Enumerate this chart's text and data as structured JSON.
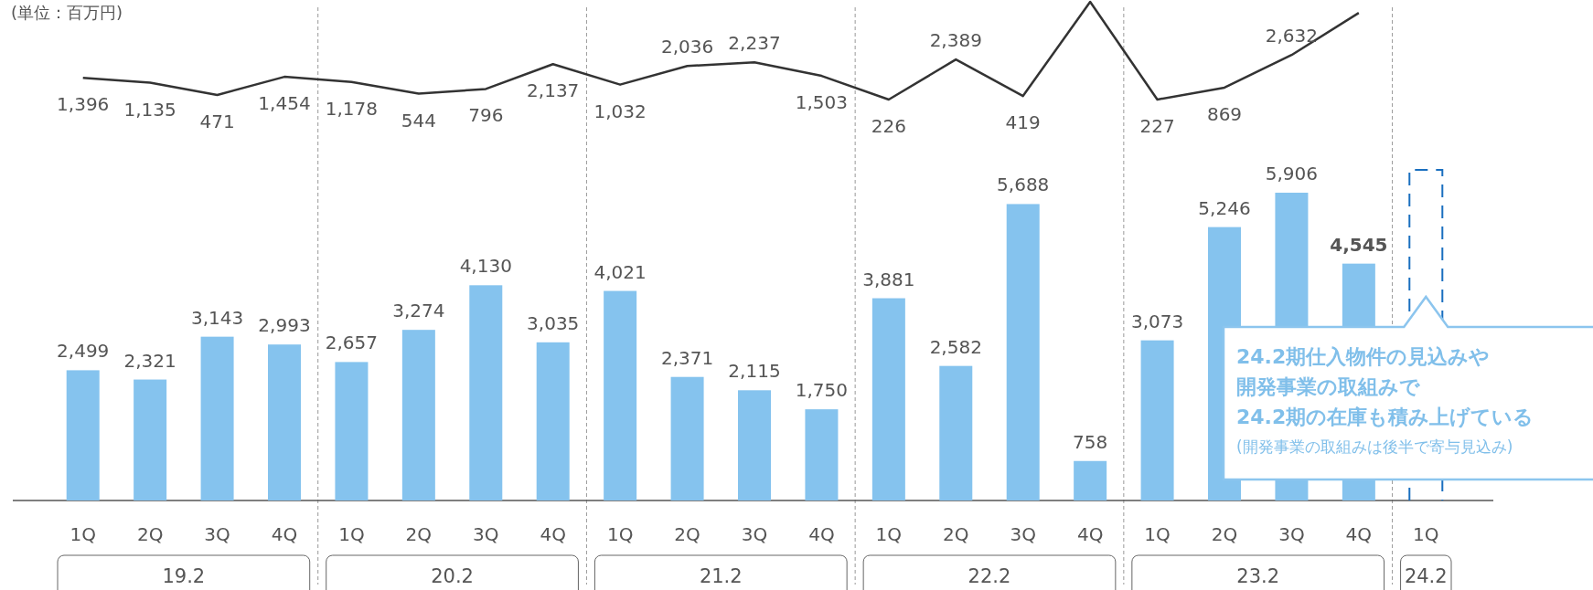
{
  "chart_data": [
    {
      "type": "line",
      "categories": [
        null,
        null,
        null,
        null,
        null,
        null,
        null,
        null,
        null,
        null,
        null,
        null,
        null,
        null,
        null,
        null,
        null,
        null,
        null,
        null,
        null
      ],
      "series": [
        {
          "color": "#333333",
          "values": [
            1396,
            1135,
            471,
            1454,
            1178,
            544,
            796,
            2137,
            1032,
            2036,
            2237,
            1503,
            226,
            2389,
            419,
            5500,
            227,
            869,
            2632,
            4900,
            null
          ],
          "value_labels": [
            "1,396",
            "1,135",
            "471",
            "1,454",
            "1,178",
            "544",
            "796",
            "2,137",
            "1,032",
            "2,036",
            "2,237",
            "1,503",
            "226",
            "2,389",
            "419",
            null,
            "227",
            "869",
            "2,632",
            null,
            null
          ]
        }
      ]
    },
    {
      "type": "bar",
      "categories": [
        "1Q",
        "2Q",
        "3Q",
        "4Q",
        "1Q",
        "2Q",
        "3Q",
        "4Q",
        "1Q",
        "2Q",
        "3Q",
        "4Q",
        "1Q",
        "2Q",
        "3Q",
        "4Q",
        "1Q",
        "2Q",
        "3Q",
        "4Q",
        "1Q"
      ],
      "series": [
        {
          "color": "#85c3ee",
          "values": [
            2499,
            2321,
            3143,
            2993,
            2657,
            3274,
            4130,
            3035,
            4021,
            2371,
            2115,
            1750,
            3881,
            2582,
            5688,
            758,
            3073,
            5246,
            5906,
            4545,
            null
          ],
          "value_labels": [
            "2,499",
            "2,321",
            "3,143",
            "2,993",
            "2,657",
            "3,274",
            "4,130",
            "3,035",
            "4,021",
            "2,371",
            "2,115",
            "1,750",
            "3,881",
            "2,582",
            "5,688",
            "758",
            "3,073",
            "5,246",
            "5,906",
            "4,545",
            null
          ]
        }
      ],
      "annotations": [
        "(単位：百万円)",
        "19.2",
        "20.2",
        "21.2",
        "22.2",
        "23.2",
        "24.2",
        "24.2期仕入物件の見込みや",
        "開発事業の取組みで",
        "24.2期の在庫も積み上げている",
        "(開発事業の取組みは後半で寄与見込み)"
      ]
    }
  ]
}
